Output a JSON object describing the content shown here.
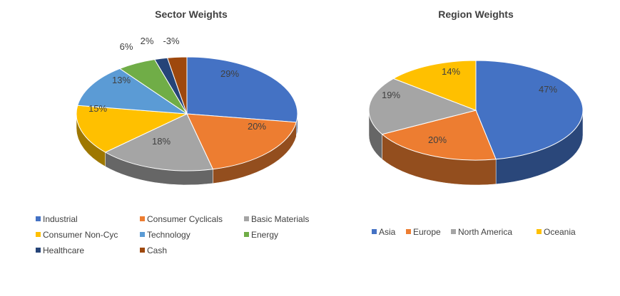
{
  "colors": {
    "blue": "#4472C4",
    "orange": "#ED7D31",
    "gray": "#A5A5A5",
    "yellow": "#FFC000",
    "lightblue": "#5B9BD5",
    "green": "#70AD47",
    "navy": "#264478",
    "brown": "#9E480E"
  },
  "chart_data": [
    {
      "type": "pie",
      "style": "3d",
      "title": "Sector Weights",
      "legend_position": "bottom",
      "slices": [
        {
          "name": "Industrial",
          "value": 29,
          "label": "29%",
          "color": "#4472C4"
        },
        {
          "name": "Consumer Cyclicals",
          "value": 20,
          "label": "20%",
          "color": "#ED7D31"
        },
        {
          "name": "Basic Materials",
          "value": 18,
          "label": "18%",
          "color": "#A5A5A5"
        },
        {
          "name": "Consumer Non-Cyc",
          "value": 15,
          "label": "15%",
          "color": "#FFC000"
        },
        {
          "name": "Technology",
          "value": 13,
          "label": "13%",
          "color": "#5B9BD5"
        },
        {
          "name": "Energy",
          "value": 6,
          "label": "6%",
          "color": "#70AD47"
        },
        {
          "name": "Healthcare",
          "value": 2,
          "label": "2%",
          "color": "#264478"
        },
        {
          "name": "Cash",
          "value": -3,
          "label": "-3%",
          "color": "#9E480E"
        }
      ]
    },
    {
      "type": "pie",
      "style": "3d",
      "title": "Region Weights",
      "legend_position": "bottom",
      "slices": [
        {
          "name": "Asia",
          "value": 47,
          "label": "47%",
          "color": "#4472C4"
        },
        {
          "name": "Europe",
          "value": 20,
          "label": "20%",
          "color": "#ED7D31"
        },
        {
          "name": "North America",
          "value": 19,
          "label": "19%",
          "color": "#A5A5A5"
        },
        {
          "name": "Oceania",
          "value": 14,
          "label": "14%",
          "color": "#FFC000"
        }
      ]
    }
  ]
}
